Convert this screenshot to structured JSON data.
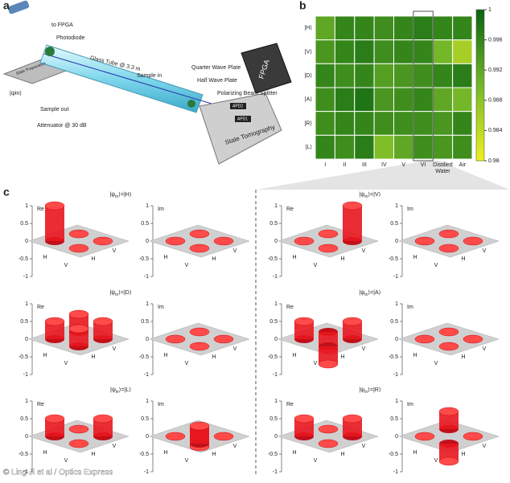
{
  "panel_a": {
    "label": "a",
    "labels": {
      "to_fpga": "to FPGA",
      "photodiode": "Photodiode",
      "tube": "Glass Tube @ 3.3 m",
      "sample_in": "Sample in",
      "qwp": "Quarter Wave Plate",
      "hwp": "Half Wave Plate",
      "pbs": "Polarizing Beam Splitter",
      "sample_out": "Sample out",
      "attenuator": "Attenuator @ 30 dB",
      "prep": "State Preparation",
      "tomo": "State Tomography",
      "fpga": "FPGA",
      "apd2": "APD2",
      "apd1": "APD1",
      "psi": "|ψin⟩"
    }
  },
  "panel_b": {
    "label": "b",
    "type": "heatmap",
    "rows": [
      "|H⟩",
      "|V⟩",
      "|D⟩",
      "|A⟩",
      "|R⟩",
      "|L⟩"
    ],
    "columns": [
      "I",
      "II",
      "III",
      "IV",
      "V",
      "VI",
      "Distilled Water",
      "Air"
    ],
    "values": [
      [
        0.992,
        0.996,
        0.996,
        0.995,
        0.996,
        0.997,
        0.996,
        0.996
      ],
      [
        0.994,
        0.996,
        0.997,
        0.995,
        0.996,
        0.996,
        0.99,
        0.986
      ],
      [
        0.996,
        0.995,
        0.996,
        0.993,
        0.994,
        0.995,
        0.996,
        0.997
      ],
      [
        0.995,
        0.997,
        0.998,
        0.994,
        0.995,
        0.996,
        0.992,
        0.99
      ],
      [
        0.995,
        0.996,
        0.996,
        0.995,
        0.995,
        0.995,
        0.994,
        0.996
      ],
      [
        0.996,
        0.995,
        0.997,
        0.989,
        0.992,
        0.995,
        0.994,
        0.995
      ]
    ],
    "colors": [
      "#f0f020",
      "#74b82a",
      "#0a6410"
    ],
    "clim": [
      0.98,
      1
    ],
    "cticks": [
      1,
      0.996,
      0.992,
      0.988,
      0.984,
      0.98
    ]
  },
  "panel_c": {
    "label": "c",
    "type": "bar3d",
    "ylim": [
      -1,
      1
    ],
    "yticks": [
      1,
      0.5,
      0,
      -0.5,
      -1
    ],
    "basis": [
      "H",
      "V"
    ],
    "re_label": "Re",
    "im_label": "Im",
    "psi_open": "|ψ",
    "psi_sub": "in",
    "psi_close": "⟩=",
    "states": [
      {
        "state": "|H⟩",
        "re": [
          1,
          0,
          0,
          0
        ],
        "im": [
          0,
          0,
          0,
          0
        ]
      },
      {
        "state": "|V⟩",
        "re": [
          0,
          0,
          0,
          1
        ],
        "im": [
          0,
          0,
          0,
          0
        ]
      },
      {
        "state": "|D⟩",
        "re": [
          0.5,
          0.5,
          0.5,
          0.5
        ],
        "im": [
          0,
          0,
          0,
          0
        ]
      },
      {
        "state": "|A⟩",
        "re": [
          0.5,
          -0.5,
          -0.5,
          0.5
        ],
        "im": [
          0,
          0,
          0,
          0
        ]
      },
      {
        "state": "|L⟩",
        "re": [
          0.5,
          0,
          0,
          0.5
        ],
        "im": [
          0,
          -0.5,
          0.5,
          0
        ]
      },
      {
        "state": "|R⟩",
        "re": [
          0.5,
          0,
          0,
          0.5
        ],
        "im": [
          0,
          0.5,
          -0.5,
          0
        ]
      }
    ]
  },
  "credit": "© Ling Ji et al / Optics Express"
}
